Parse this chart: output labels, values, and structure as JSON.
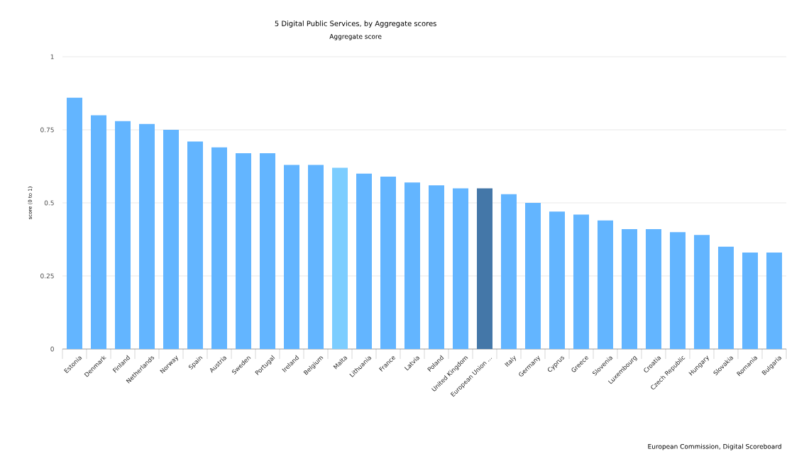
{
  "chart_data": {
    "type": "bar",
    "title": "5 Digital Public Services, by Aggregate scores",
    "subtitle": "Aggregate score",
    "ylabel": "score (0 to 1)",
    "categories": [
      "Estonia",
      "Denmark",
      "Finland",
      "Netherlands",
      "Norway",
      "Spain",
      "Austria",
      "Sweden",
      "Portugal",
      "Ireland",
      "Belgium",
      "Malta",
      "Lithuania",
      "France",
      "Latvia",
      "Poland",
      "United Kingdom",
      "European Union ...",
      "Italy",
      "Germany",
      "Cyprus",
      "Greece",
      "Slovenia",
      "Luxembourg",
      "Croatia",
      "Czech Republic",
      "Hungary",
      "Slovakia",
      "Romania",
      "Bulgaria"
    ],
    "values": [
      0.86,
      0.8,
      0.78,
      0.77,
      0.75,
      0.71,
      0.69,
      0.67,
      0.67,
      0.63,
      0.63,
      0.62,
      0.6,
      0.59,
      0.57,
      0.56,
      0.55,
      0.55,
      0.53,
      0.5,
      0.47,
      0.46,
      0.44,
      0.41,
      0.41,
      0.4,
      0.39,
      0.35,
      0.33,
      0.33
    ],
    "colors": [
      "#63b5ff",
      "#63b5ff",
      "#63b5ff",
      "#63b5ff",
      "#63b5ff",
      "#63b5ff",
      "#63b5ff",
      "#63b5ff",
      "#63b5ff",
      "#63b5ff",
      "#63b5ff",
      "#7ccdff",
      "#63b5ff",
      "#63b5ff",
      "#63b5ff",
      "#63b5ff",
      "#63b5ff",
      "#4477a8",
      "#63b5ff",
      "#63b5ff",
      "#63b5ff",
      "#63b5ff",
      "#63b5ff",
      "#63b5ff",
      "#63b5ff",
      "#63b5ff",
      "#63b5ff",
      "#63b5ff",
      "#63b5ff",
      "#63b5ff"
    ],
    "ylim": [
      0,
      1
    ],
    "yticks": [
      0,
      0.25,
      0.5,
      0.75,
      1
    ],
    "grid": "y",
    "annotations": [
      "European Commission, Digital Scoreboard"
    ]
  }
}
